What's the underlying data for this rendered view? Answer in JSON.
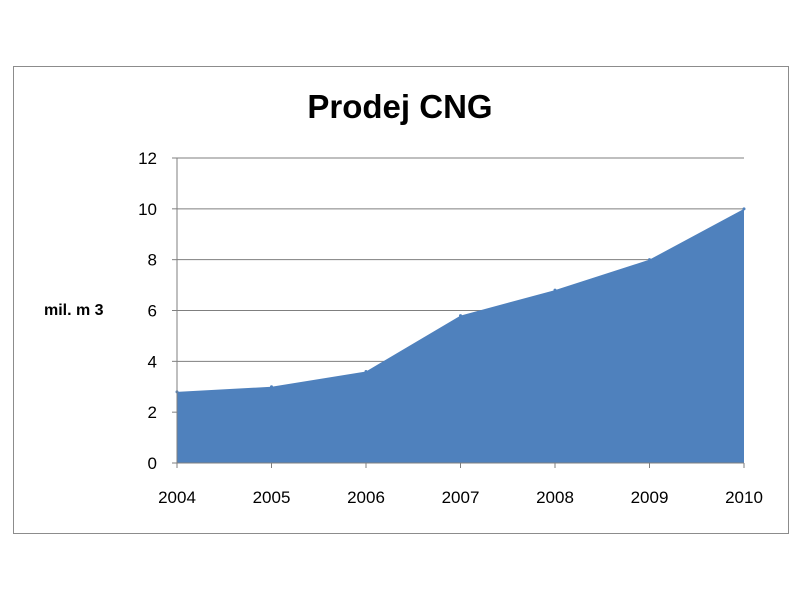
{
  "chart_data": {
    "type": "area",
    "title": "Prodej CNG",
    "xlabel": "",
    "ylabel": "mil. m 3",
    "categories": [
      "2004",
      "2005",
      "2006",
      "2007",
      "2008",
      "2009",
      "2010"
    ],
    "values": [
      2.8,
      3.0,
      3.6,
      5.8,
      6.8,
      8.0,
      10.0
    ],
    "ylim": [
      0,
      12
    ],
    "yticks": [
      0,
      2,
      4,
      6,
      8,
      10,
      12
    ],
    "grid": true,
    "legend": "none",
    "colors": {
      "fill": "#4f81bd",
      "grid": "#7f7f7f",
      "axis": "#7f7f7f"
    }
  }
}
